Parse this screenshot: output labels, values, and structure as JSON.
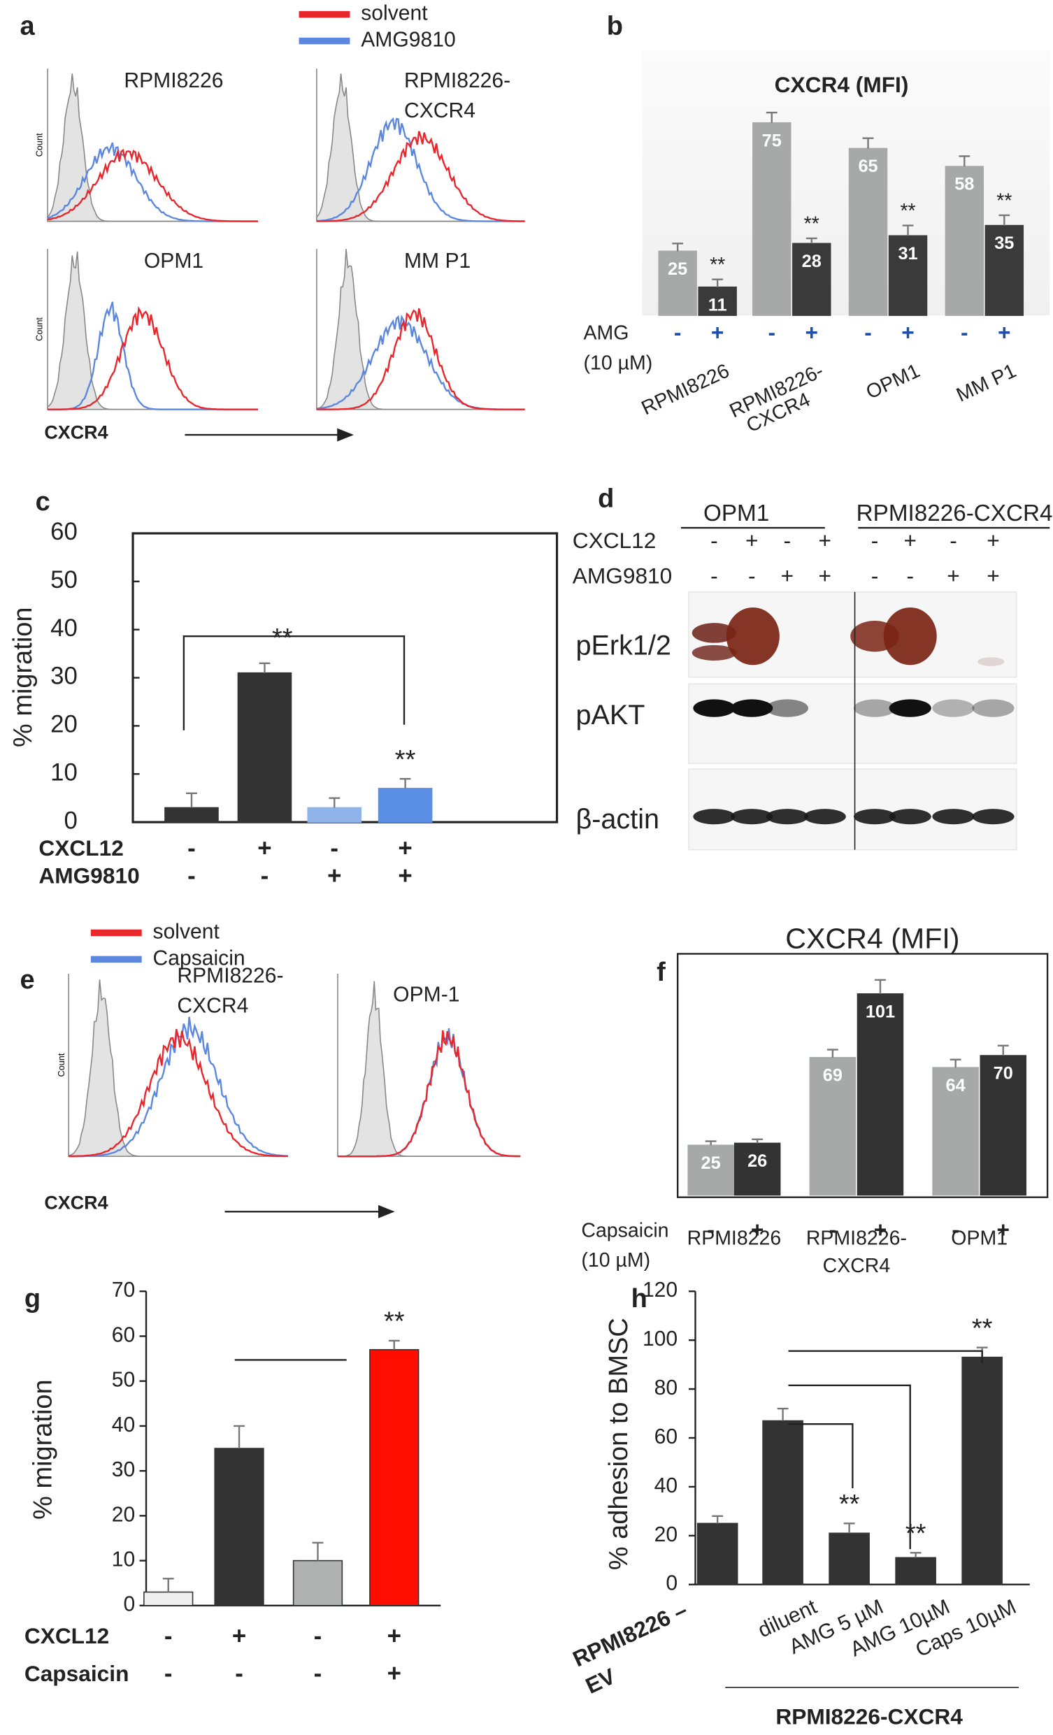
{
  "panel_labels": [
    "a",
    "b",
    "c",
    "d",
    "e",
    "f",
    "g",
    "h"
  ],
  "flow_a": {
    "legend": [
      {
        "name": "solvent",
        "color": "#e8262c"
      },
      {
        "name": "AMG9810",
        "color": "#5b87e0"
      }
    ],
    "plots": [
      [
        "RPMI8226"
      ],
      [
        "RPMI8226-",
        "CXCR4"
      ],
      [
        "OPM1"
      ],
      [
        "MM P1"
      ]
    ],
    "ylabel": "Count",
    "xlabel": "CXCR4"
  },
  "blot_d": {
    "groups": [
      "OPM1",
      "RPMI8226-CXCR4"
    ],
    "rows": [
      {
        "name": "CXCL12",
        "signs": [
          "-",
          "+",
          "-",
          "+",
          "-",
          "+",
          "-",
          "+"
        ]
      },
      {
        "name": "AMG9810",
        "signs": [
          "-",
          "-",
          "+",
          "+",
          "-",
          "-",
          "+",
          "+"
        ]
      }
    ],
    "bands": [
      "pErk1/2",
      "pAKT",
      "β-actin"
    ]
  },
  "flow_e": {
    "legend": [
      {
        "name": "solvent",
        "color": "#e8262c"
      },
      {
        "name": "Capsaicin",
        "color": "#5b87e0"
      }
    ],
    "plots": [
      [
        "RPMI8226-",
        "CXCR4"
      ],
      [
        "OPM-1"
      ]
    ],
    "ylabel": "Count",
    "xlabel": "CXCR4"
  },
  "chart_data": [
    {
      "type": "grouped_bar",
      "title": "CXCR4 (MFI)",
      "categories": [
        [
          "RPMI8226"
        ],
        [
          "RPMI8226-",
          "CXCR4"
        ],
        [
          "OPM1"
        ],
        [
          "MM P1"
        ]
      ],
      "condition": [
        "AMG",
        "(10 µM)"
      ],
      "series": [
        {
          "name": "-",
          "color": "#a6a9a7",
          "values": [
            25,
            75,
            65,
            58
          ],
          "errors": [
            3,
            4,
            4,
            4
          ]
        },
        {
          "name": "+",
          "color": "#3a3a3a",
          "values": [
            11,
            28,
            31,
            35
          ],
          "errors": [
            3,
            2,
            4,
            4
          ],
          "annotations": [
            "**",
            "**",
            "**",
            "**"
          ]
        }
      ]
    },
    {
      "type": "bar",
      "ylabel": "% migration",
      "ylim": [
        0,
        60
      ],
      "yticks": [
        0,
        10,
        20,
        30,
        40,
        50,
        60
      ],
      "values": [
        3,
        31,
        3,
        7
      ],
      "errors": [
        3,
        2,
        2,
        2
      ],
      "colors": [
        "#333333",
        "#333333",
        "#8fb4ea",
        "#5b8fe3"
      ],
      "conditions": [
        {
          "name": "CXCL12",
          "signs": [
            "-",
            "+",
            "-",
            "+"
          ]
        },
        {
          "name": "AMG9810",
          "signs": [
            "-",
            "-",
            "+",
            "+"
          ]
        }
      ],
      "annotations": [
        null,
        null,
        null,
        "**"
      ],
      "bracket_label": "**"
    },
    {
      "type": "grouped_bar",
      "title": "CXCR4 (MFI)",
      "categories": [
        [
          "RPMI8226"
        ],
        [
          "RPMI8226-",
          "CXCR4"
        ],
        [
          "OPM1"
        ]
      ],
      "condition": [
        "Capsaicin",
        "(10 µM)"
      ],
      "series": [
        {
          "name": "-",
          "color": "#a6a9a7",
          "values": [
            25,
            69,
            64
          ],
          "errors": [
            2,
            4,
            4
          ]
        },
        {
          "name": "+",
          "color": "#333333",
          "values": [
            26,
            101,
            70
          ],
          "errors": [
            2,
            7,
            5
          ]
        }
      ]
    },
    {
      "type": "bar",
      "ylabel": "% migration",
      "ylim": [
        0,
        70
      ],
      "yticks": [
        0,
        10,
        20,
        30,
        40,
        50,
        60,
        70
      ],
      "values": [
        3,
        35,
        10,
        57
      ],
      "errors": [
        3,
        5,
        4,
        2
      ],
      "colors": [
        "#efefef",
        "#333333",
        "#b0b2b1",
        "#ff0d00"
      ],
      "conditions": [
        {
          "name": "CXCL12",
          "signs": [
            "-",
            "+",
            "-",
            "+"
          ]
        },
        {
          "name": "Capsaicin",
          "signs": [
            "-",
            "-",
            "-",
            "+"
          ]
        }
      ],
      "annotations": [
        null,
        null,
        null,
        "**"
      ]
    },
    {
      "type": "bar",
      "ylabel": "% adhesion to BMSC",
      "ylim": [
        0,
        120
      ],
      "yticks": [
        0,
        20,
        40,
        60,
        80,
        100,
        120
      ],
      "values": [
        25,
        67,
        21,
        11,
        93
      ],
      "errors": [
        3,
        5,
        4,
        2,
        4
      ],
      "colors": [
        "#333333",
        "#333333",
        "#333333",
        "#333333",
        "#333333"
      ],
      "categories": [
        [
          "RPMI8226 –",
          "EV"
        ],
        [
          "diluent"
        ],
        [
          "AMG 5 µM"
        ],
        [
          "AMG 10µM"
        ],
        [
          "Caps 10µM"
        ]
      ],
      "annotations": [
        null,
        null,
        "**",
        "**",
        "**"
      ],
      "group_label": "RPMI8226-CXCR4"
    }
  ]
}
